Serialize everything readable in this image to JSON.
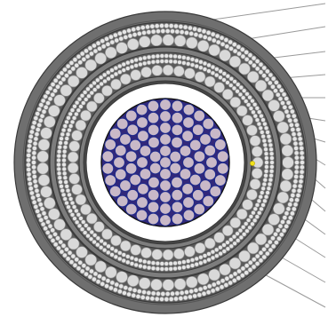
{
  "diagram": {
    "kind": "cable cross-section",
    "colors": {
      "background": "#ffffff",
      "outer_sheath": "#6f6f6f",
      "inner_sheath": "#7d7d7d",
      "separator": "#3a3a3a",
      "wire_fill": "#d9d9d9",
      "wire_stroke": "#8a8a8a",
      "fine_wire_fill": "#e6e6e6",
      "core_fill": "#c9b9c8",
      "core_stroke": "#1e2a8c",
      "core_background": "#32287a",
      "gap": "#ffffff",
      "marker": "#f2e21a",
      "leader_line": "#9a9a9a"
    },
    "layers": [
      "outer-sheath",
      "outer-armour-fine-wires",
      "outer-armour-wires",
      "intermediate-sheath",
      "inner-armour-fine-wires",
      "inner-armour-wires",
      "inner-sheath",
      "air-gap",
      "conductor-core"
    ],
    "leader_line_count": 14,
    "marker": "yellow-dot"
  }
}
